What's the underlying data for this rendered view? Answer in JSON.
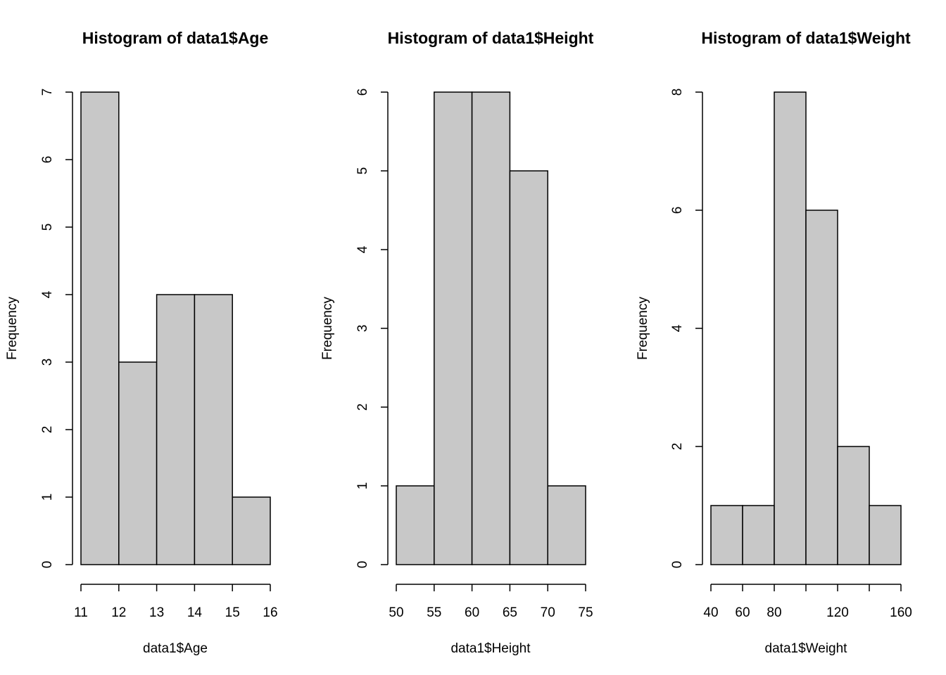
{
  "colors": {
    "bar_fill": "#c8c8c8",
    "bar_stroke": "#000000",
    "background": "#ffffff"
  },
  "chart_data": [
    {
      "type": "bar",
      "title": "Histogram of data1$Age",
      "xlabel": "data1$Age",
      "ylabel": "Frequency",
      "bins": [
        {
          "x0": 11,
          "x1": 12,
          "value": 7
        },
        {
          "x0": 12,
          "x1": 13,
          "value": 3
        },
        {
          "x0": 13,
          "x1": 14,
          "value": 4
        },
        {
          "x0": 14,
          "x1": 15,
          "value": 4
        },
        {
          "x0": 15,
          "x1": 16,
          "value": 1
        }
      ],
      "xticks": [
        "11",
        "12",
        "13",
        "14",
        "15",
        "16"
      ],
      "yticks": [
        "0",
        "1",
        "2",
        "3",
        "4",
        "5",
        "6",
        "7"
      ],
      "xlim": [
        11,
        16
      ],
      "ylim": [
        0,
        7
      ],
      "grid": false
    },
    {
      "type": "bar",
      "title": "Histogram of data1$Height",
      "xlabel": "data1$Height",
      "ylabel": "Frequency",
      "bins": [
        {
          "x0": 50,
          "x1": 55,
          "value": 1
        },
        {
          "x0": 55,
          "x1": 60,
          "value": 6
        },
        {
          "x0": 60,
          "x1": 65,
          "value": 6
        },
        {
          "x0": 65,
          "x1": 70,
          "value": 5
        },
        {
          "x0": 70,
          "x1": 75,
          "value": 1
        }
      ],
      "xticks": [
        "50",
        "55",
        "60",
        "65",
        "70",
        "75"
      ],
      "yticks": [
        "0",
        "1",
        "2",
        "3",
        "4",
        "5",
        "6"
      ],
      "xlim": [
        50,
        75
      ],
      "ylim": [
        0,
        6
      ],
      "grid": false
    },
    {
      "type": "bar",
      "title": "Histogram of data1$Weight",
      "xlabel": "data1$Weight",
      "ylabel": "Frequency",
      "bins": [
        {
          "x0": 40,
          "x1": 60,
          "value": 1
        },
        {
          "x0": 60,
          "x1": 80,
          "value": 1
        },
        {
          "x0": 80,
          "x1": 100,
          "value": 8
        },
        {
          "x0": 100,
          "x1": 120,
          "value": 6
        },
        {
          "x0": 120,
          "x1": 140,
          "value": 2
        },
        {
          "x0": 140,
          "x1": 160,
          "value": 1
        }
      ],
      "xticks": [
        "40",
        "60",
        "80",
        "120",
        "160"
      ],
      "xticks_unlabeled": [
        "100",
        "140"
      ],
      "yticks": [
        "0",
        "2",
        "4",
        "6",
        "8"
      ],
      "xlim": [
        40,
        160
      ],
      "ylim": [
        0,
        8
      ],
      "grid": false
    }
  ]
}
